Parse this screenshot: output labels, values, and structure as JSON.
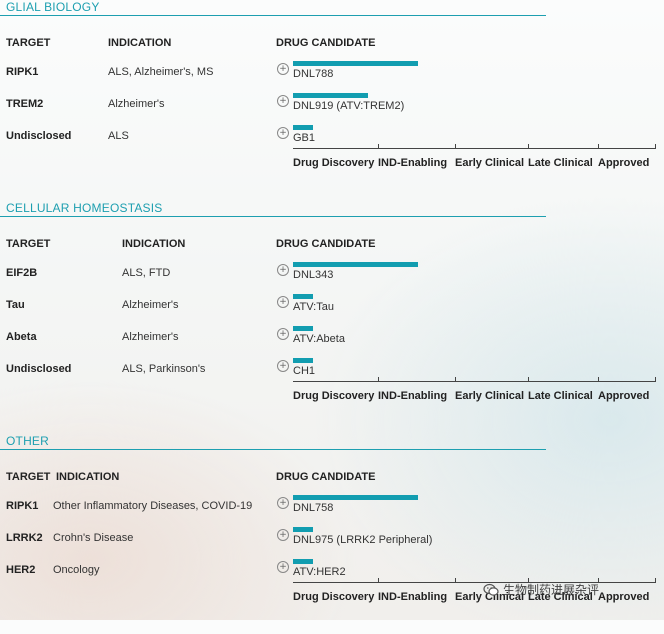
{
  "phases": [
    "Drug Discovery",
    "IND-Enabling",
    "Early Clinical",
    "Late Clinical",
    "Approved"
  ],
  "colors": {
    "accent": "#1d9fb0",
    "bar": "#129db0"
  },
  "watermark": {
    "text": "生物制药进展杂评",
    "icon": "wechat-icon"
  },
  "sections": [
    {
      "title": "GLIAL BIOLOGY",
      "headers": {
        "target": "TARGET",
        "indication": "INDICATION",
        "drug": "DRUG CANDIDATE"
      },
      "rows": [
        {
          "target": "RIPK1",
          "indication": "ALS, Alzheimer's, MS",
          "drug": "DNL788",
          "progress": 0.5
        },
        {
          "target": "TREM2",
          "indication": "Alzheimer's",
          "drug": "DNL919 (ATV:TREM2)",
          "progress": 0.3
        },
        {
          "target": "Undisclosed",
          "indication": "ALS",
          "drug": "GB1",
          "progress": 0.08
        }
      ]
    },
    {
      "title": "CELLULAR HOMEOSTASIS",
      "headers": {
        "target": "TARGET",
        "indication": "INDICATION",
        "drug": "DRUG CANDIDATE"
      },
      "rows": [
        {
          "target": "EIF2B",
          "indication": "ALS, FTD",
          "drug": "DNL343",
          "progress": 0.5
        },
        {
          "target": "Tau",
          "indication": "Alzheimer's",
          "drug": "ATV:Tau",
          "progress": 0.08
        },
        {
          "target": "Abeta",
          "indication": "Alzheimer's",
          "drug": "ATV:Abeta",
          "progress": 0.08
        },
        {
          "target": "Undisclosed",
          "indication": "ALS, Parkinson's",
          "drug": "CH1",
          "progress": 0.08
        }
      ]
    },
    {
      "title": "OTHER",
      "headers": {
        "target": "TARGET",
        "indication": "INDICATION",
        "drug": "DRUG CANDIDATE"
      },
      "rows": [
        {
          "target": "RIPK1",
          "indication": "Other Inflammatory Diseases, COVID-19",
          "drug": "DNL758",
          "progress": 0.5
        },
        {
          "target": "LRRK2",
          "indication": "Crohn's Disease",
          "drug": "DNL975 (LRRK2 Peripheral)",
          "progress": 0.08
        },
        {
          "target": "HER2",
          "indication": "Oncology",
          "drug": "ATV:HER2",
          "progress": 0.08
        }
      ]
    }
  ],
  "chart_data": {
    "type": "bar",
    "categories": [
      "Drug Discovery",
      "IND-Enabling",
      "Early Clinical",
      "Late Clinical",
      "Approved"
    ],
    "series": [
      {
        "group": "GLIAL BIOLOGY",
        "drug": "DNL788",
        "stage_progress": 1.5
      },
      {
        "group": "GLIAL BIOLOGY",
        "drug": "DNL919 (ATV:TREM2)",
        "stage_progress": 0.9
      },
      {
        "group": "GLIAL BIOLOGY",
        "drug": "GB1",
        "stage_progress": 0.25
      },
      {
        "group": "CELLULAR HOMEOSTASIS",
        "drug": "DNL343",
        "stage_progress": 1.5
      },
      {
        "group": "CELLULAR HOMEOSTASIS",
        "drug": "ATV:Tau",
        "stage_progress": 0.25
      },
      {
        "group": "CELLULAR HOMEOSTASIS",
        "drug": "ATV:Abeta",
        "stage_progress": 0.25
      },
      {
        "group": "CELLULAR HOMEOSTASIS",
        "drug": "CH1",
        "stage_progress": 0.25
      },
      {
        "group": "OTHER",
        "drug": "DNL758",
        "stage_progress": 1.5
      },
      {
        "group": "OTHER",
        "drug": "DNL975 (LRRK2 Peripheral)",
        "stage_progress": 0.25
      },
      {
        "group": "OTHER",
        "drug": "ATV:HER2",
        "stage_progress": 0.25
      }
    ]
  }
}
